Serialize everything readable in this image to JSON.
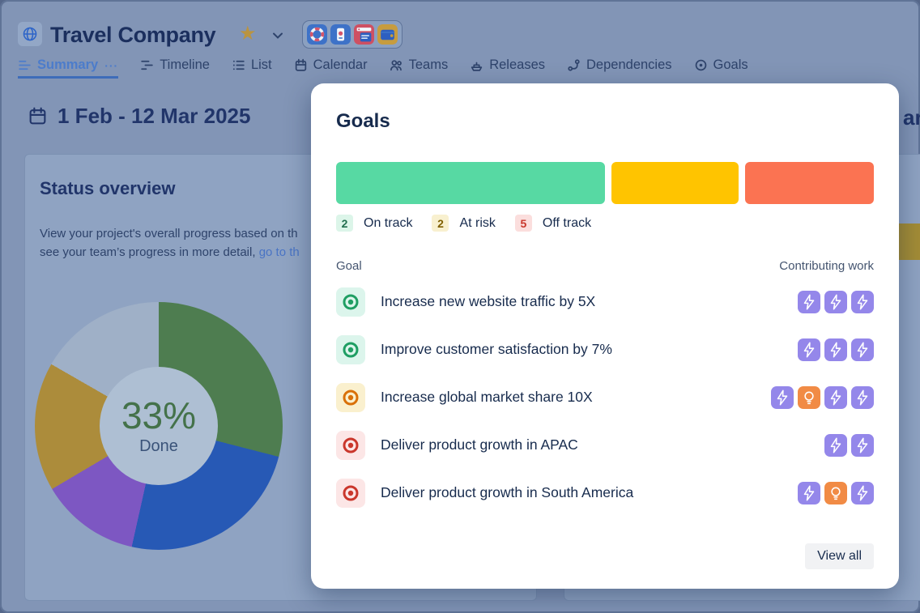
{
  "colors": {
    "on_track": "#57D9A3",
    "at_risk": "#FFC400",
    "off_track": "#FB7352",
    "bolt_bg": "#9487EA",
    "bulb_bg": "#F18B45",
    "active_tab": "#4C7CCB",
    "navy_text": "#172B4D"
  },
  "header": {
    "title": "Travel Company",
    "icons": [
      "globe-icon",
      "star-icon",
      "chevron-down-icon"
    ],
    "app_icons": [
      "lifebuoy-app-icon",
      "phone-app-icon",
      "browser-app-icon",
      "wallet-app-icon"
    ]
  },
  "tabs": {
    "items": [
      {
        "id": "summary",
        "label": "Summary",
        "icon": "summary-icon",
        "active": true,
        "more": true
      },
      {
        "id": "timeline",
        "label": "Timeline",
        "icon": "timeline-icon",
        "active": false
      },
      {
        "id": "list",
        "label": "List",
        "icon": "list-icon",
        "active": false
      },
      {
        "id": "calendar",
        "label": "Calendar",
        "icon": "calendar-icon",
        "active": false
      },
      {
        "id": "teams",
        "label": "Teams",
        "icon": "teams-icon",
        "active": false
      },
      {
        "id": "releases",
        "label": "Releases",
        "icon": "releases-icon",
        "active": false
      },
      {
        "id": "dependencies",
        "label": "Dependencies",
        "icon": "dependencies-icon",
        "active": false
      },
      {
        "id": "goals",
        "label": "Goals",
        "icon": "goals-icon",
        "active": false
      }
    ]
  },
  "background": {
    "date_heading": "1 Feb - 12 Mar 2025",
    "right_heading_fragment": "ar",
    "status_card": {
      "title": "Status overview",
      "description_line1": "View your project's overall progress based on th",
      "description_line2": "see your team’s progress in more detail, ",
      "description_link": "go to th",
      "donut": {
        "type": "donut",
        "center_value": "33%",
        "center_label": "Done",
        "segments": [
          {
            "name": "green",
            "pct": 29,
            "color": "#4E7D50"
          },
          {
            "name": "blue",
            "pct": 24.5,
            "color": "#2759B5"
          },
          {
            "name": "purple",
            "pct": 13,
            "color": "#7D57C2"
          },
          {
            "name": "gold",
            "pct": 16.8,
            "color": "#AC8C3B"
          },
          {
            "name": "gray",
            "pct": 16.7,
            "color": "#9FB0C7"
          }
        ]
      }
    }
  },
  "modal": {
    "title": "Goals",
    "status_bars": [
      {
        "status": "on_track",
        "weight": 326
      },
      {
        "status": "at_risk",
        "weight": 154
      },
      {
        "status": "off_track",
        "weight": 156
      }
    ],
    "legend": [
      {
        "count": "2",
        "label": "On track",
        "status": "on_track"
      },
      {
        "count": "2",
        "label": "At risk",
        "status": "at_risk"
      },
      {
        "count": "5",
        "label": "Off track",
        "status": "off_track"
      }
    ],
    "table": {
      "goal_header": "Goal",
      "contributing_header": "Contributing work"
    },
    "goals": [
      {
        "label": "Increase new website traffic by 5X",
        "status": "on_track",
        "contributing": [
          "bolt",
          "bolt",
          "bolt"
        ]
      },
      {
        "label": "Improve customer satisfaction by 7%",
        "status": "on_track",
        "contributing": [
          "bolt",
          "bolt",
          "bolt"
        ]
      },
      {
        "label": "Increase global market share 10X",
        "status": "at_risk",
        "contributing": [
          "bolt",
          "bulb",
          "bolt",
          "bolt"
        ]
      },
      {
        "label": "Deliver product growth in APAC",
        "status": "off_track",
        "contributing": [
          "bolt",
          "bolt"
        ]
      },
      {
        "label": "Deliver product growth in South America",
        "status": "off_track",
        "contributing": [
          "bolt",
          "bulb",
          "bolt"
        ]
      }
    ],
    "view_all_label": "View all"
  }
}
